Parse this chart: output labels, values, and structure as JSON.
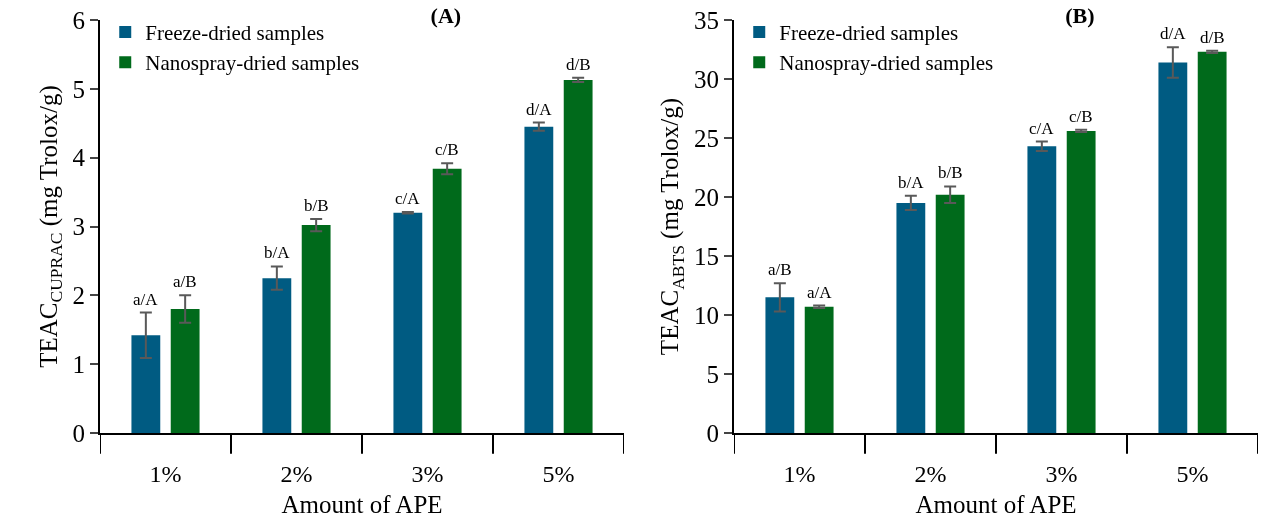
{
  "chart_data": [
    {
      "type": "bar",
      "title": "(A)",
      "xlabel": "Amount of APE",
      "ylabel": "TEAC$_{CUPRAC}$ (mg Trolox/g)",
      "categories": [
        "1%",
        "2%",
        "3%",
        "5%"
      ],
      "ylim": [
        0,
        6
      ],
      "yticks": [
        0,
        1,
        2,
        3,
        4,
        5,
        6
      ],
      "grid": false,
      "legend": "top left",
      "series": [
        {
          "name": "Freeze-dried samples",
          "color": "#005b82",
          "values": [
            1.42,
            2.25,
            3.2,
            4.45
          ],
          "errors": [
            0.33,
            0.17,
            0.01,
            0.06
          ],
          "value_labels": [
            "a/A",
            "b/A",
            "c/A",
            "d/A"
          ]
        },
        {
          "name": "Nanospray-dried samples",
          "color": "#006a1b",
          "values": [
            1.8,
            3.02,
            3.84,
            5.13
          ],
          "errors": [
            0.2,
            0.09,
            0.08,
            0.03
          ],
          "value_labels": [
            "a/B",
            "b/B",
            "c/B",
            "d/B"
          ]
        }
      ]
    },
    {
      "type": "bar",
      "title": "(B)",
      "xlabel": "Amount of APE",
      "ylabel": "TEAC$_{ABTS}$ (mg Trolox/g)",
      "categories": [
        "1%",
        "2%",
        "3%",
        "5%"
      ],
      "ylim": [
        0,
        35
      ],
      "yticks": [
        0,
        5,
        10,
        15,
        20,
        25,
        30,
        35
      ],
      "grid": false,
      "legend": "top left",
      "series": [
        {
          "name": "Freeze-dried samples",
          "color": "#005b82",
          "values": [
            11.5,
            19.5,
            24.3,
            31.4
          ],
          "errors": [
            1.2,
            0.6,
            0.4,
            1.3
          ],
          "value_labels": [
            "a/B",
            "b/A",
            "c/A",
            "d/A"
          ]
        },
        {
          "name": "Nanospray-dried samples",
          "color": "#006a1b",
          "values": [
            10.7,
            20.2,
            25.6,
            32.3
          ],
          "errors": [
            0.1,
            0.7,
            0.1,
            0.1
          ],
          "value_labels": [
            "a/A",
            "b/B",
            "c/B",
            "d/B"
          ]
        }
      ]
    }
  ]
}
